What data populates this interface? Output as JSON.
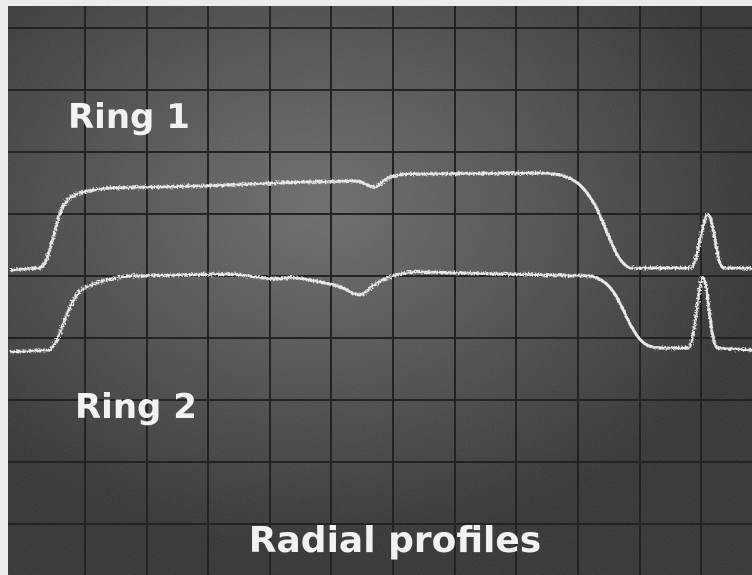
{
  "labels": {
    "ring_1": "Ring 1",
    "ring_2": "Ring 2",
    "caption": "Radial profiles"
  }
}
